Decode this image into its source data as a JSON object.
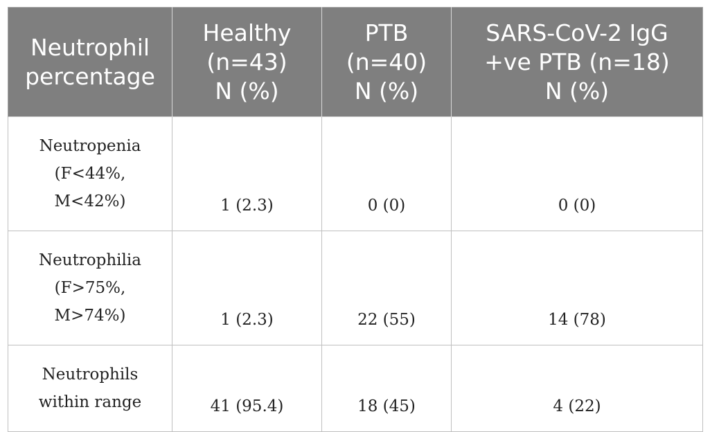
{
  "header": {
    "col1": [
      "Neutrophil",
      "percentage"
    ],
    "col2": [
      "Healthy",
      "(n=43)",
      "N (%)"
    ],
    "col3": [
      "PTB",
      "(n=40)",
      "N (%)"
    ],
    "col4": [
      "SARS-CoV-2 IgG",
      "+ve PTB (n=18)",
      "N (%)"
    ]
  },
  "rows": [
    {
      "label": [
        "Neutropenia",
        "(F<44%,",
        "M<42%)"
      ],
      "healthy": "1 (2.3)",
      "ptb": "0 (0)",
      "sars": "0 (0)"
    },
    {
      "label": [
        "Neutrophilia",
        "(F>75%,",
        "M>74%)"
      ],
      "healthy": "1 (2.3)",
      "ptb": "22 (55)",
      "sars": "14 (78)"
    },
    {
      "label": [
        "Neutrophils",
        "within range"
      ],
      "healthy": "41 (95.4)",
      "ptb": "18 (45)",
      "sars": "4 (22)"
    }
  ]
}
